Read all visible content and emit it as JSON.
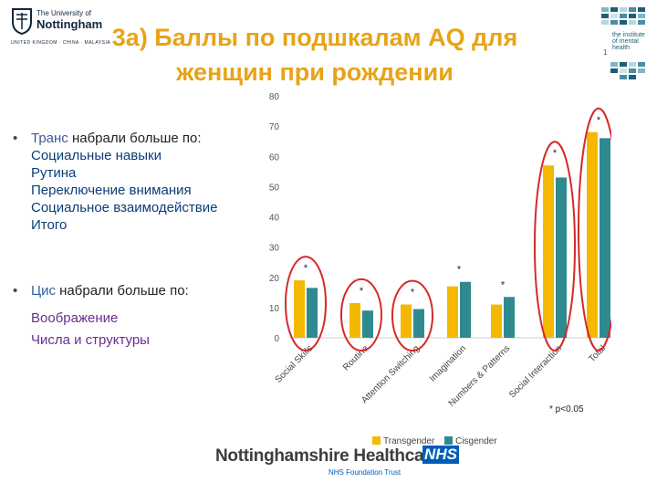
{
  "header": {
    "uni_line1": "The University of",
    "uni_line2": "Nottingham",
    "uni_line3": "UNITED KINGDOM · CHINA · MALAYSIA",
    "imh_text": "the institute of mental health",
    "imh_num": "1"
  },
  "title": {
    "line1": "3a) Баллы по подшкалам AQ для",
    "line2": "женщин при рождении"
  },
  "bullets": {
    "trans_keyword": "Транс",
    "trans_rest": " набрали больше по:",
    "trans_items": [
      "Социальные навыки",
      "Рутина",
      "Переключение внимания",
      "Социальное взаимодействие",
      "Итого"
    ],
    "cis_keyword": "Цис",
    "cis_rest": " набрали больше по:",
    "cis_items": [
      "Воображение",
      "Числа и структуры"
    ]
  },
  "significance_note": "* p<0.05",
  "footer": {
    "org": "Nottinghamshire Healthcare",
    "nhs": "NHS",
    "trust": "NHS Foundation Trust"
  },
  "colors": {
    "transgender": "#f5b800",
    "cisgender": "#2f8a8f",
    "highlight": "#d42a2a",
    "title": "#e8a317"
  },
  "chart_data": {
    "type": "bar",
    "categories": [
      "Social Skills",
      "Routine",
      "Attention Switching",
      "Imagination",
      "Numbers & Patterns",
      "Social Interaction",
      "Total"
    ],
    "series": [
      {
        "name": "Transgender",
        "values": [
          19,
          11.5,
          11,
          17,
          11,
          57,
          68
        ]
      },
      {
        "name": "Cisgender",
        "values": [
          16.5,
          9,
          9.5,
          18.5,
          13.5,
          53,
          66
        ]
      }
    ],
    "significant": [
      true,
      true,
      true,
      true,
      true,
      true,
      true
    ],
    "highlighted": [
      "Social Skills",
      "Routine",
      "Attention Switching",
      "Social Interaction",
      "Total"
    ],
    "ylim": [
      0,
      80
    ],
    "yticks": [
      0,
      10,
      20,
      30,
      40,
      50,
      60,
      70,
      80
    ],
    "grid": false,
    "legend_position": "bottom"
  }
}
